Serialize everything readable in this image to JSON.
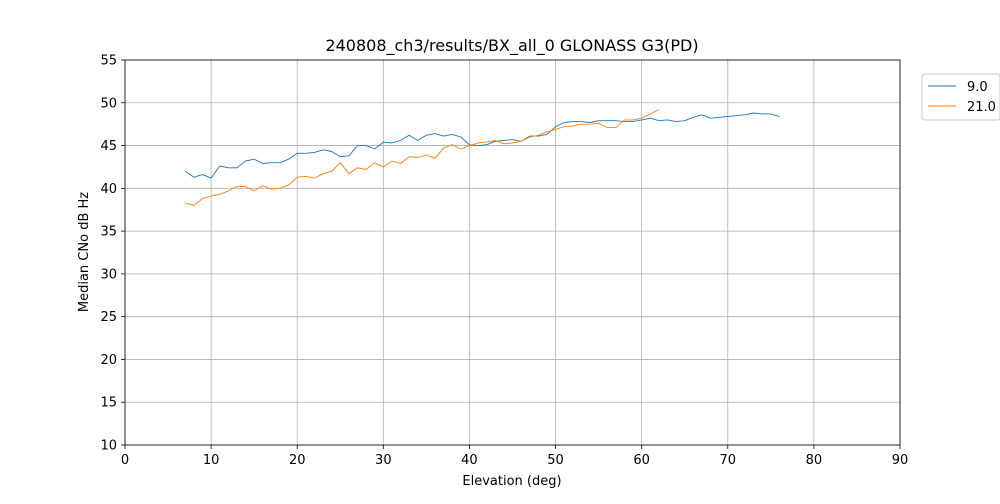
{
  "chart_data": {
    "type": "line",
    "title": "240808_ch3/results/BX_all_0 GLONASS G3(PD)",
    "xlabel": "Elevation (deg)",
    "ylabel": "Median CNo dB Hz",
    "xlim": [
      0,
      90
    ],
    "ylim": [
      10,
      55
    ],
    "xticks": [
      0,
      10,
      20,
      30,
      40,
      50,
      60,
      70,
      80,
      90
    ],
    "yticks": [
      10,
      15,
      20,
      25,
      30,
      35,
      40,
      45,
      50,
      55
    ],
    "grid": true,
    "legend_position": "outside top-right",
    "series": [
      {
        "name": "9.0",
        "color": "#1f77b4",
        "x": [
          7,
          8,
          9,
          10,
          11,
          12,
          13,
          14,
          15,
          16,
          17,
          18,
          19,
          20,
          21,
          22,
          23,
          24,
          25,
          26,
          27,
          28,
          29,
          30,
          31,
          32,
          33,
          34,
          35,
          36,
          37,
          38,
          39,
          40,
          41,
          42,
          43,
          44,
          45,
          46,
          47,
          48,
          49,
          50,
          51,
          52,
          53,
          54,
          55,
          56,
          57,
          58,
          59,
          60,
          61,
          62,
          63,
          64,
          65,
          66,
          67,
          68,
          69,
          70,
          71,
          72,
          73,
          74,
          75,
          76
        ],
        "y": [
          42.0,
          41.3,
          41.6,
          41.2,
          42.6,
          42.4,
          42.4,
          43.2,
          43.4,
          42.9,
          43.0,
          43.0,
          43.4,
          44.1,
          44.1,
          44.2,
          44.5,
          44.3,
          43.7,
          43.8,
          45.0,
          45.0,
          44.6,
          45.4,
          45.3,
          45.6,
          46.2,
          45.6,
          46.2,
          46.4,
          46.1,
          46.3,
          46.0,
          45.1,
          45.0,
          45.1,
          45.5,
          45.6,
          45.7,
          45.5,
          46.1,
          46.1,
          46.3,
          47.2,
          47.7,
          47.8,
          47.8,
          47.7,
          47.9,
          47.9,
          47.9,
          47.8,
          47.8,
          48.0,
          48.2,
          47.9,
          48.0,
          47.8,
          47.9,
          48.3,
          48.6,
          48.2,
          48.3,
          48.4,
          48.5,
          48.6,
          48.8,
          48.7,
          48.7,
          48.4
        ]
      },
      {
        "name": "21.0",
        "color": "#ff7f0e",
        "x": [
          7,
          8,
          9,
          10,
          11,
          12,
          13,
          14,
          15,
          16,
          17,
          18,
          19,
          20,
          21,
          22,
          23,
          24,
          25,
          26,
          27,
          28,
          29,
          30,
          31,
          32,
          33,
          34,
          35,
          36,
          37,
          38,
          39,
          40,
          41,
          42,
          43,
          44,
          45,
          46,
          47,
          48,
          49,
          50,
          51,
          52,
          53,
          54,
          55,
          56,
          57,
          58,
          59,
          60,
          61,
          62
        ],
        "y": [
          38.3,
          38.0,
          38.8,
          39.1,
          39.3,
          39.7,
          40.2,
          40.2,
          39.7,
          40.3,
          39.9,
          40.0,
          40.4,
          41.3,
          41.4,
          41.2,
          41.7,
          42.0,
          43.0,
          41.7,
          42.4,
          42.2,
          43.0,
          42.5,
          43.2,
          42.9,
          43.7,
          43.6,
          43.9,
          43.5,
          44.7,
          45.1,
          44.6,
          45.0,
          45.3,
          45.4,
          45.6,
          45.2,
          45.3,
          45.5,
          46.0,
          46.2,
          46.6,
          46.9,
          47.2,
          47.3,
          47.5,
          47.5,
          47.6,
          47.1,
          47.1,
          48.0,
          48.0,
          48.2,
          48.7,
          49.2
        ]
      }
    ]
  }
}
